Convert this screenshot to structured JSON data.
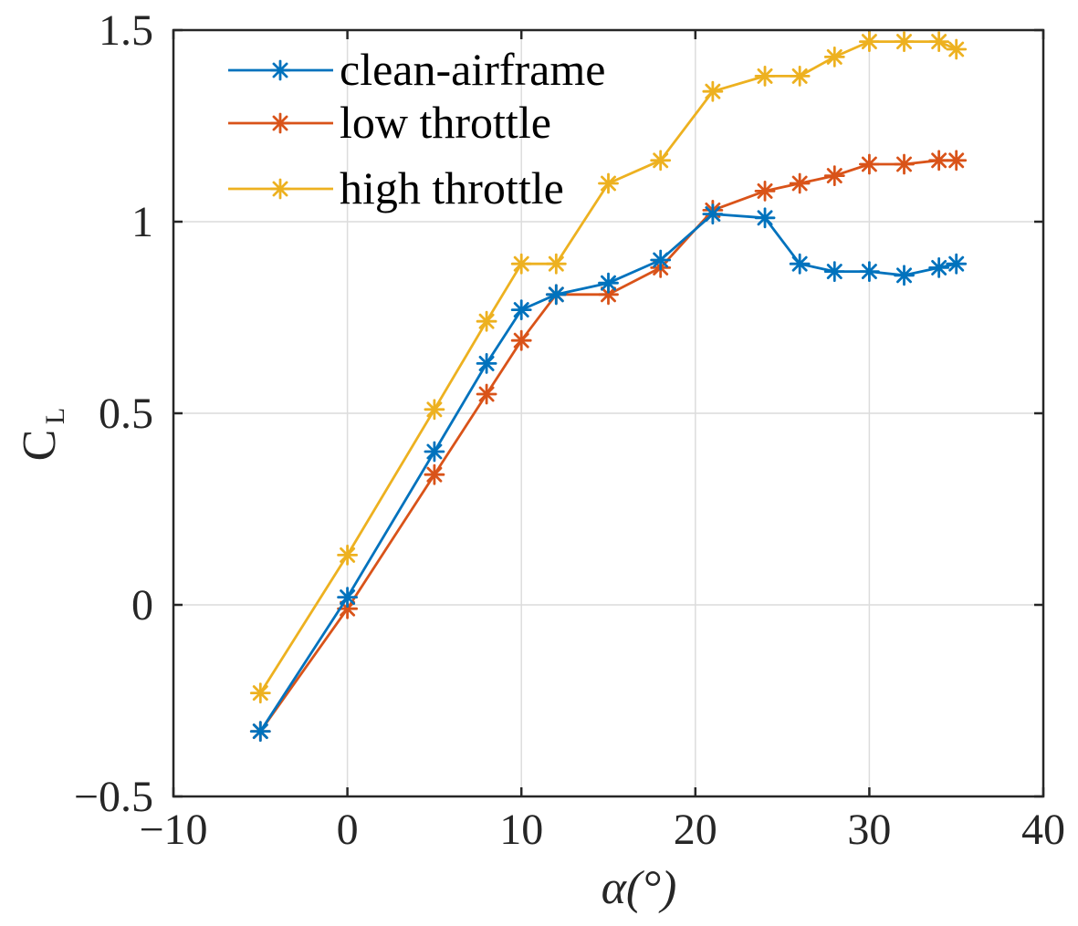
{
  "chart_data": {
    "type": "line",
    "title": "",
    "xlabel": "α(°)",
    "ylabel_main": "C",
    "ylabel_sub": "L",
    "xlim": [
      -10,
      40
    ],
    "ylim": [
      -0.5,
      1.5
    ],
    "xticks": [
      -10,
      0,
      10,
      20,
      30,
      40
    ],
    "yticks": [
      -0.5,
      0,
      0.5,
      1,
      1.5
    ],
    "xtick_labels": [
      "−10",
      "0",
      "10",
      "20",
      "30",
      "40"
    ],
    "ytick_labels": [
      "−0.5",
      "0",
      "0.5",
      "1",
      "1.5"
    ],
    "grid": true,
    "legend_position": "top-left",
    "series": [
      {
        "name": "clean-airframe",
        "color": "#0072BD",
        "x": [
          -5,
          0,
          5,
          8,
          10,
          12,
          15,
          18,
          21,
          24,
          26,
          28,
          30,
          32,
          34,
          35
        ],
        "y": [
          -0.33,
          0.02,
          0.4,
          0.63,
          0.77,
          0.81,
          0.84,
          0.9,
          1.02,
          1.01,
          0.89,
          0.87,
          0.87,
          0.86,
          0.88,
          0.89
        ]
      },
      {
        "name": "low throttle",
        "color": "#D95319",
        "x": [
          -5,
          0,
          5,
          8,
          10,
          12,
          15,
          18,
          21,
          24,
          26,
          28,
          30,
          32,
          34,
          35
        ],
        "y": [
          -0.33,
          -0.01,
          0.34,
          0.55,
          0.69,
          0.81,
          0.81,
          0.88,
          1.03,
          1.08,
          1.1,
          1.12,
          1.15,
          1.15,
          1.16,
          1.16
        ]
      },
      {
        "name": "high throttle",
        "color": "#EDB120",
        "x": [
          -5,
          0,
          5,
          8,
          10,
          12,
          15,
          18,
          21,
          24,
          26,
          28,
          30,
          32,
          34,
          35
        ],
        "y": [
          -0.23,
          0.13,
          0.51,
          0.74,
          0.89,
          0.89,
          1.1,
          1.16,
          1.34,
          1.38,
          1.38,
          1.43,
          1.47,
          1.47,
          1.47,
          1.45
        ]
      }
    ]
  }
}
